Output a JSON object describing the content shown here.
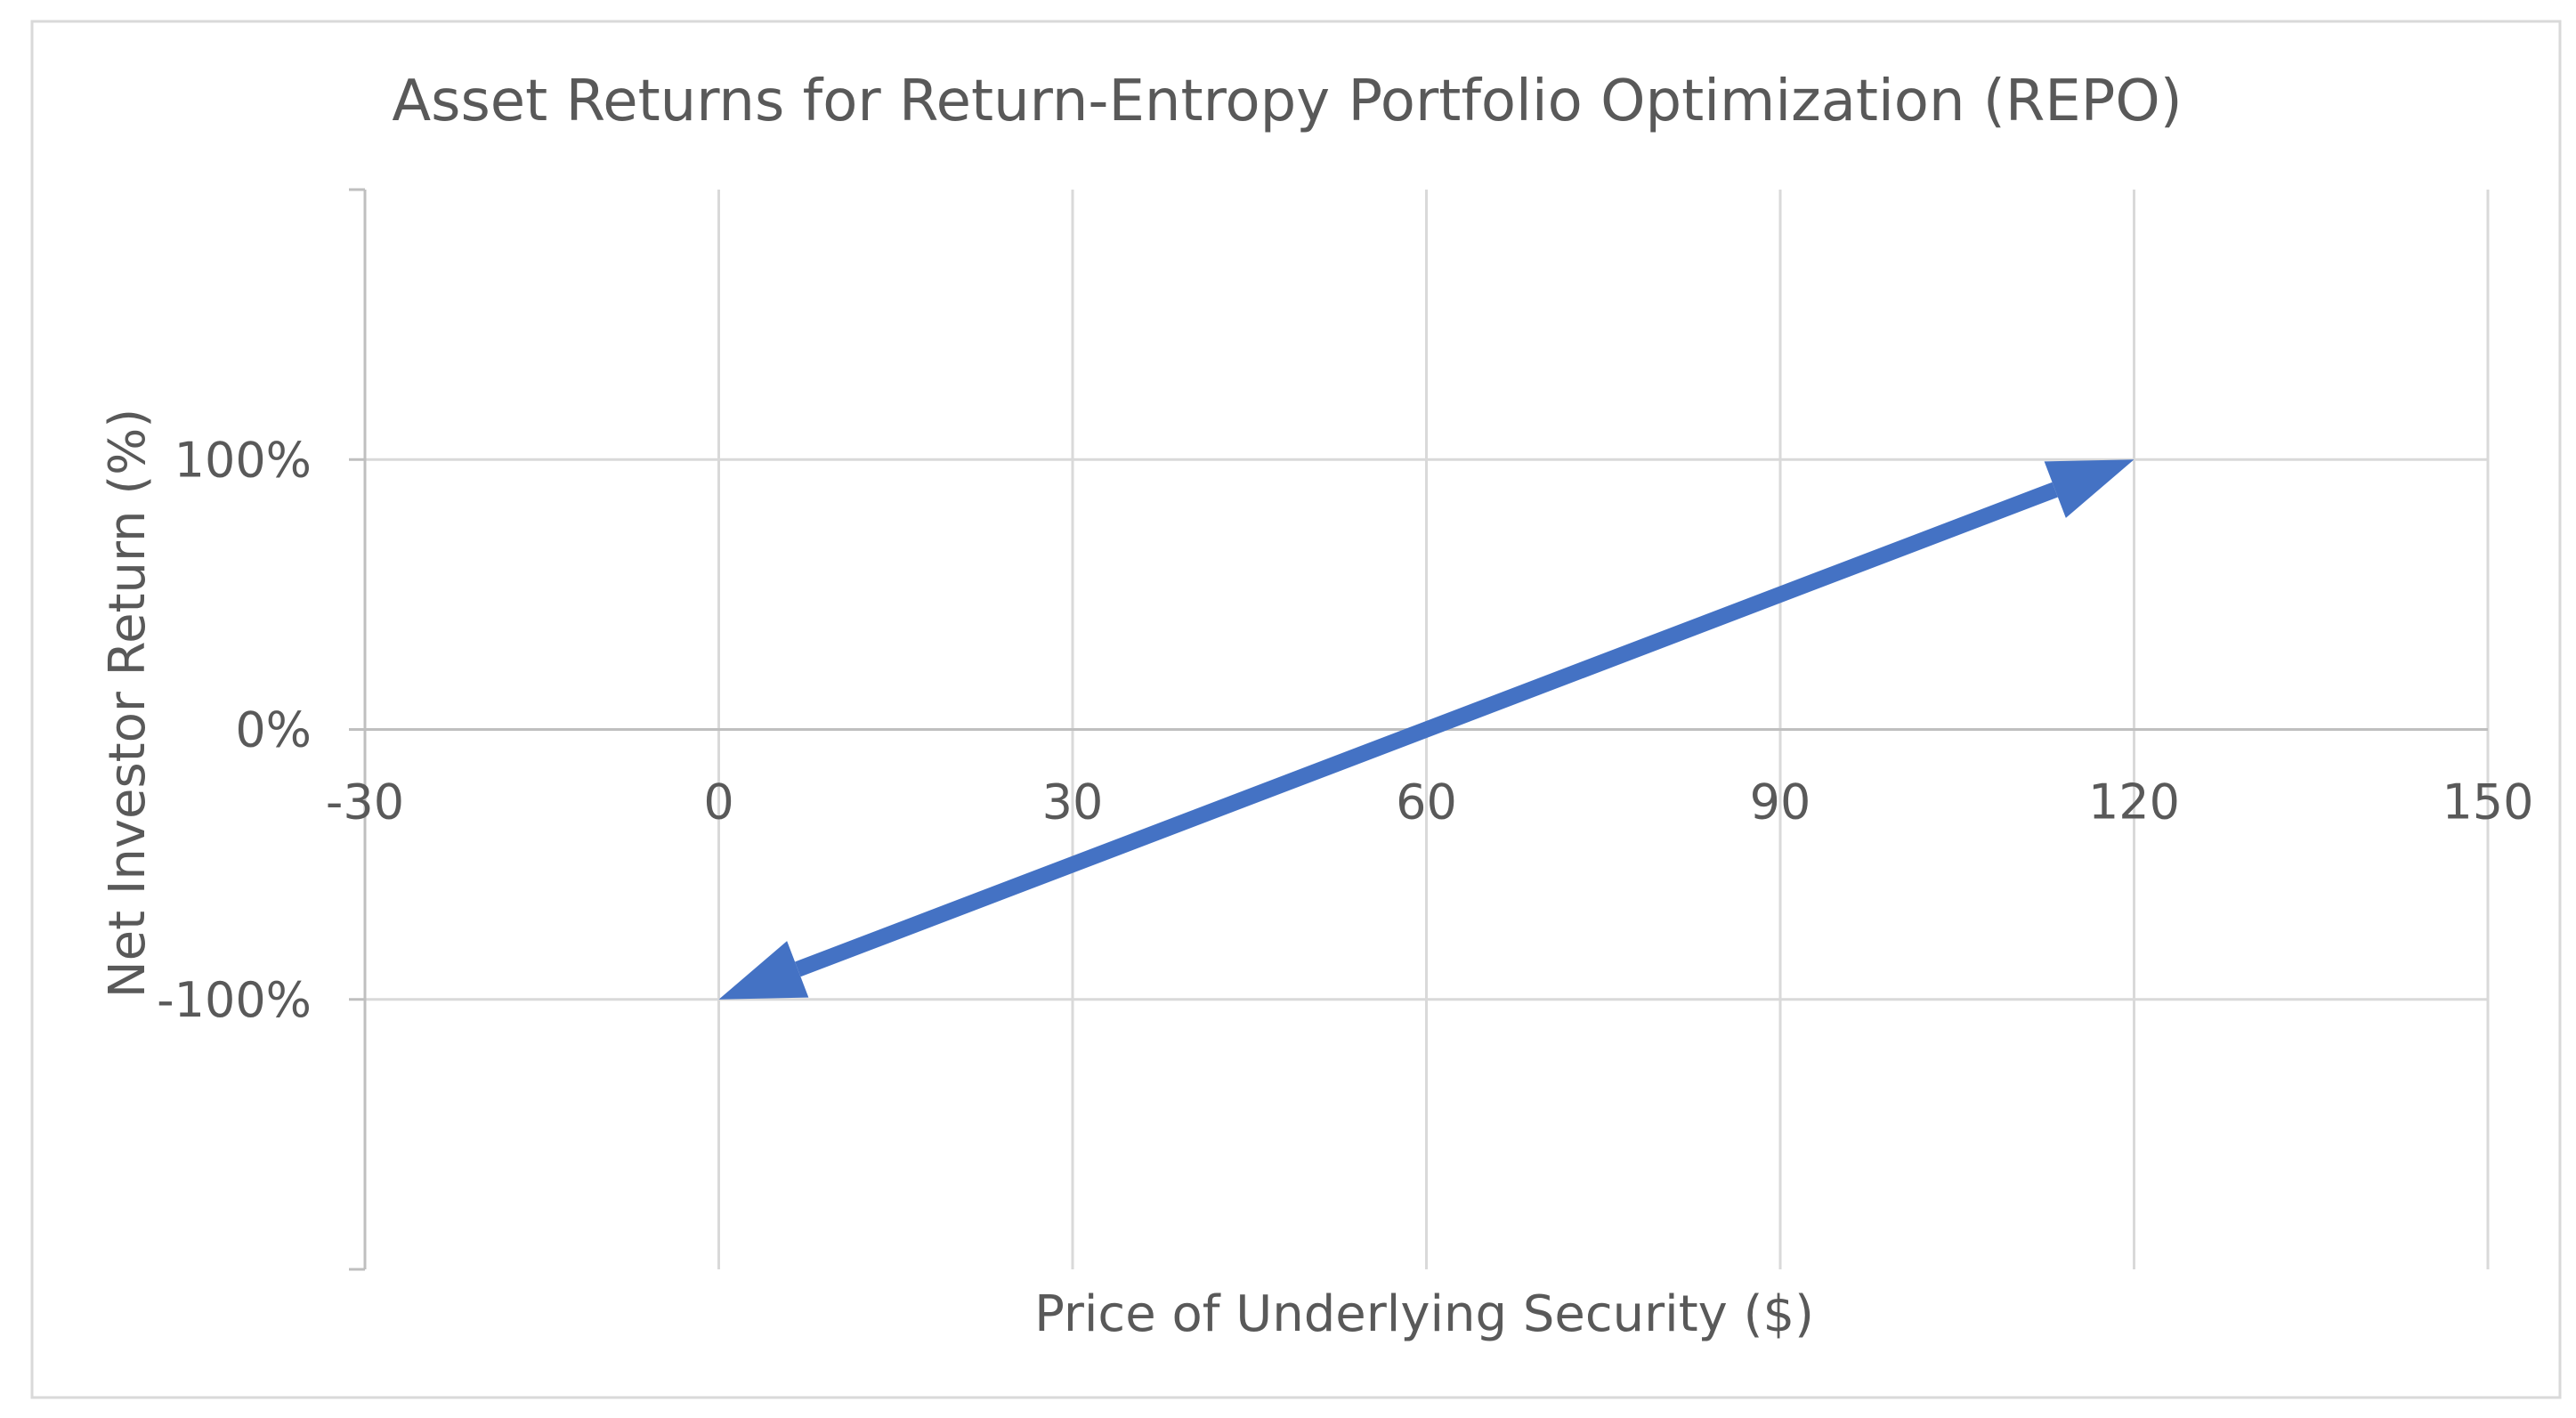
{
  "chart_data": {
    "type": "line",
    "title": "Asset Returns for Return-Entropy Portfolio Optimization (REPO)",
    "xlabel": "Price of Underlying Security ($)",
    "ylabel": "Net Investor Return (%)",
    "xlim": [
      -30,
      150
    ],
    "ylim": [
      -2,
      2
    ],
    "x_ticks": [
      -30,
      0,
      30,
      60,
      90,
      120,
      150
    ],
    "x_tick_labels": [
      "-30",
      "0",
      "30",
      "60",
      "90",
      "120",
      "150"
    ],
    "y_ticks": [
      -1,
      0,
      1
    ],
    "y_tick_labels": [
      "-100%",
      "0%",
      "100%"
    ],
    "grid": true,
    "legend": "none",
    "series": [
      {
        "x": [
          0,
          120
        ],
        "y": [
          -1,
          1
        ],
        "color": "#4472C4",
        "arrows": "both"
      }
    ]
  }
}
